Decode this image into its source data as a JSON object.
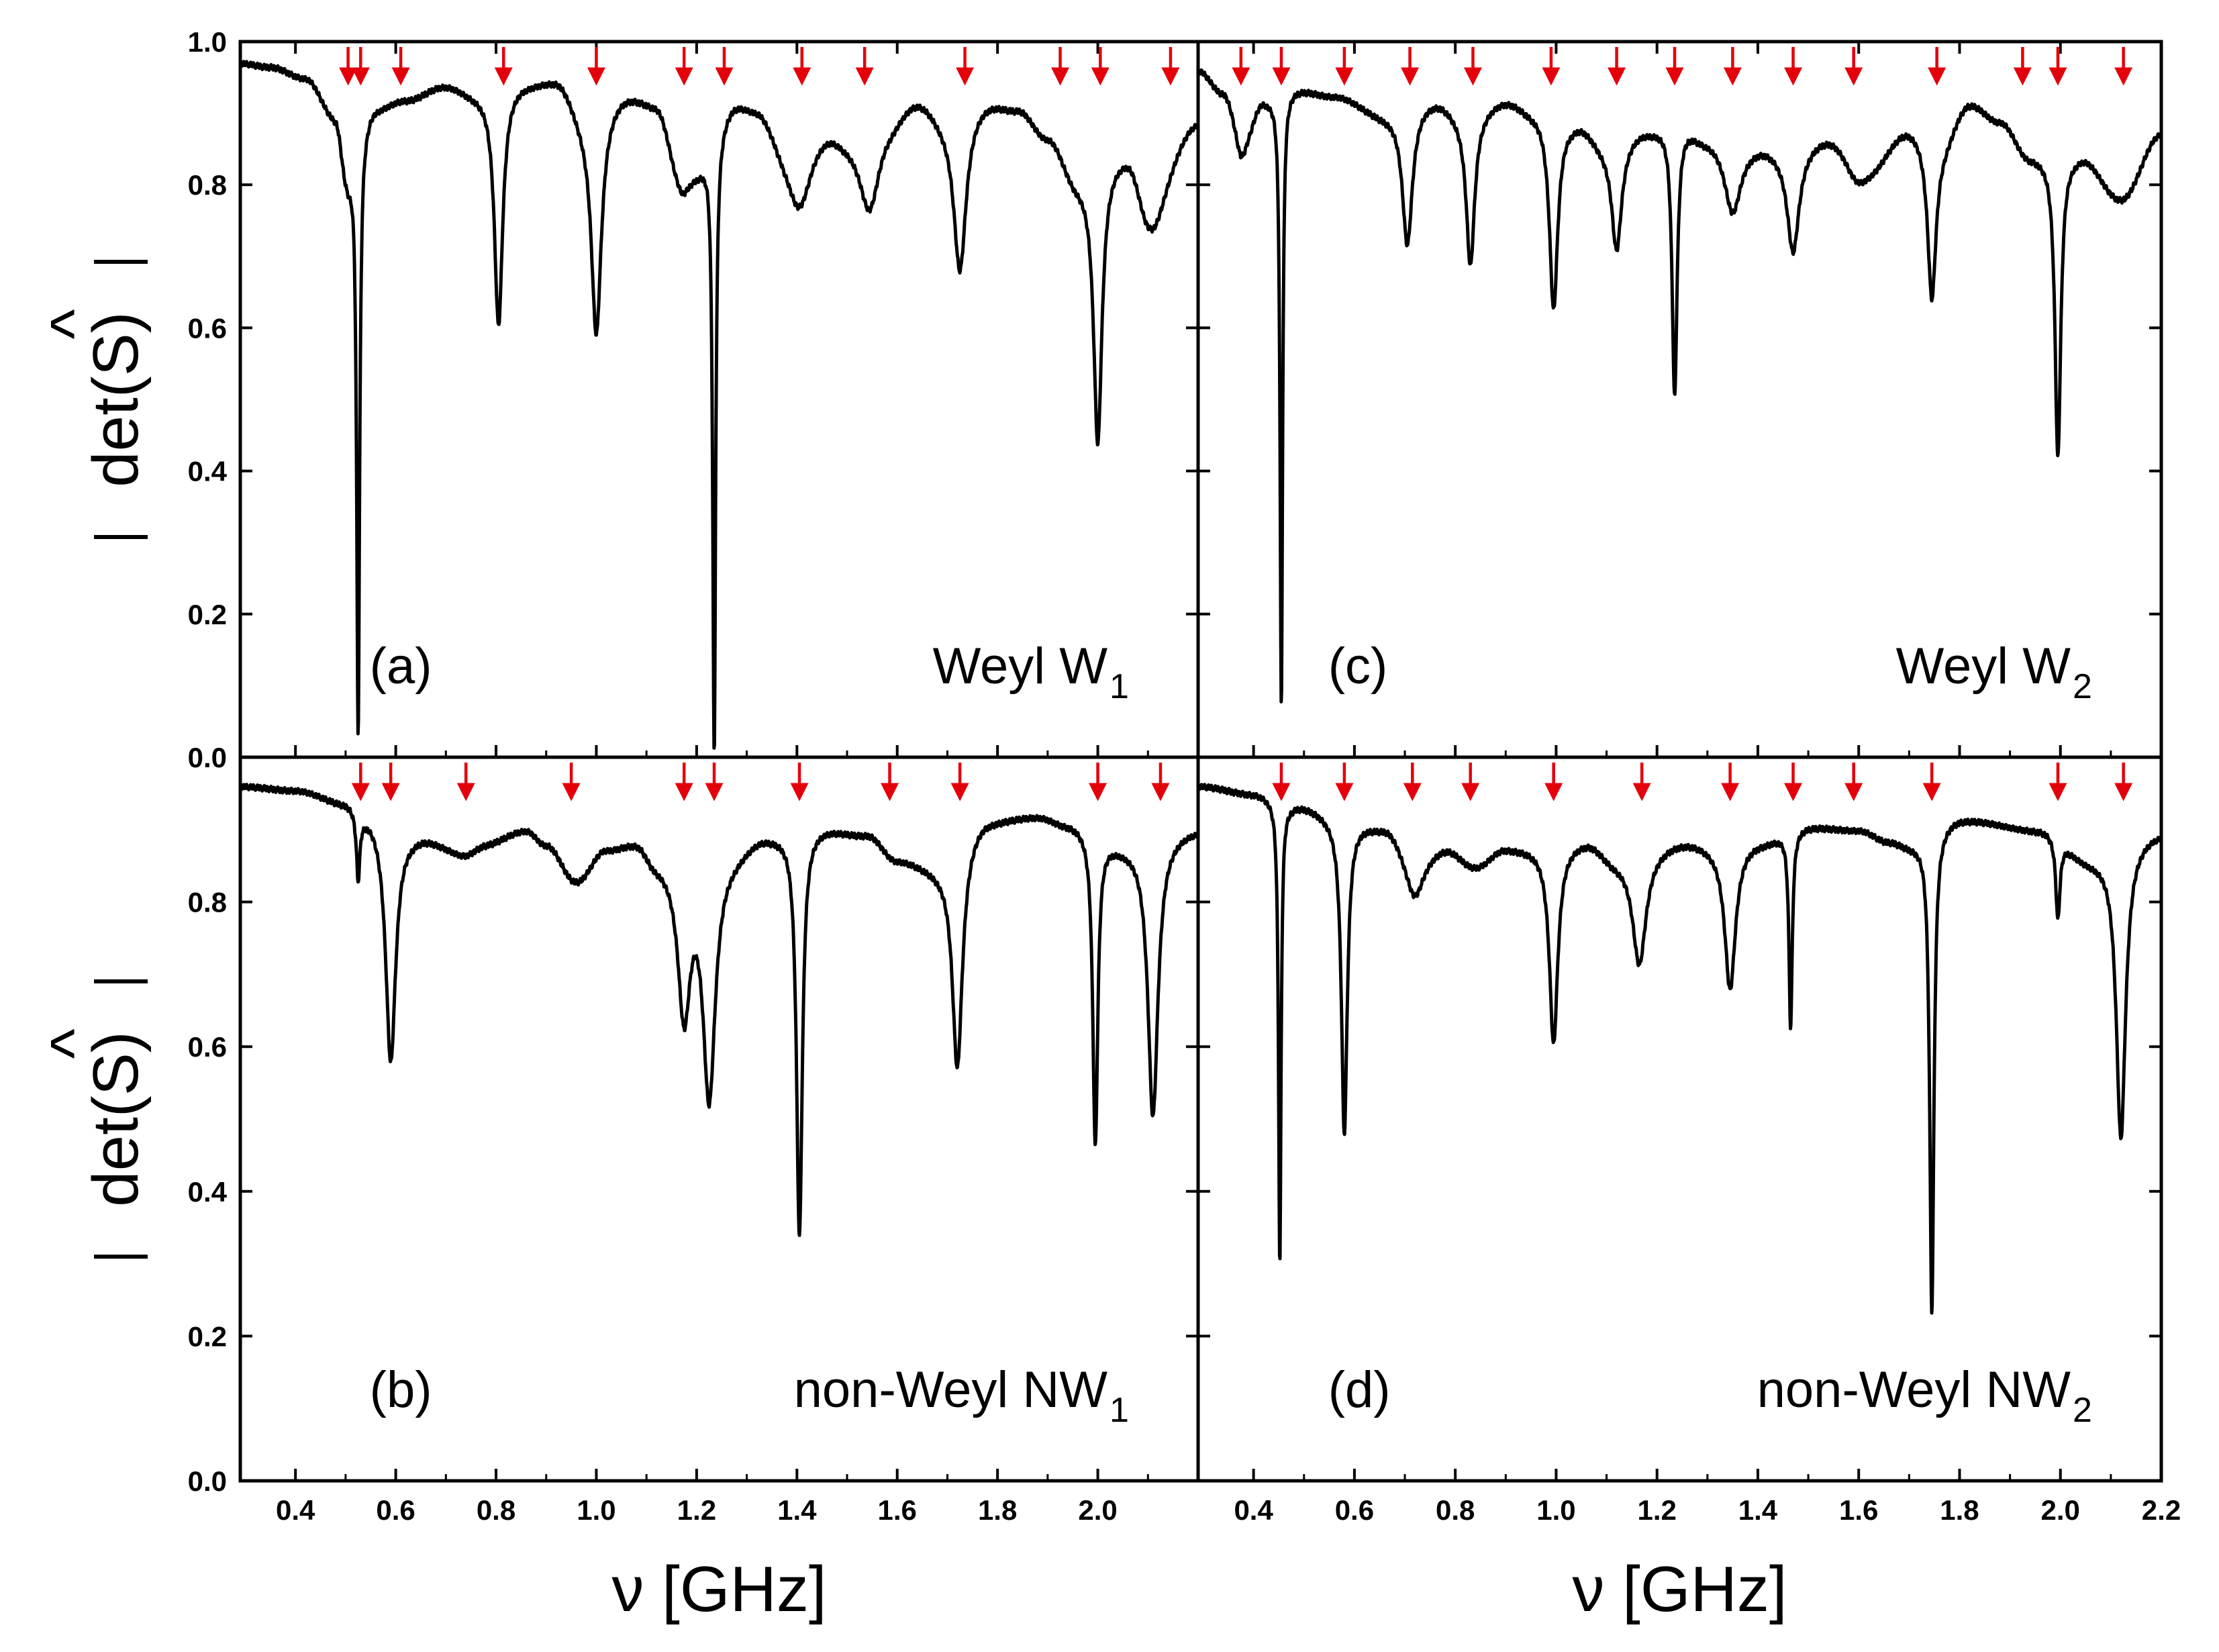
{
  "figure": {
    "xlabel": "ν [GHz]",
    "ylabel_main": "det(S)",
    "ylabel_hat": "^",
    "colors": {
      "curve": "#000000",
      "arrow": "#e3000b",
      "frame": "#000000"
    }
  },
  "chart_data": [
    {
      "type": "line",
      "panel_id": "(a)",
      "label": "Weyl W",
      "label_sub": "1",
      "xlim": [
        0.29,
        2.2
      ],
      "ylim": [
        0.0,
        1.0
      ],
      "xticks": [
        "0.4",
        "0.6",
        "0.8",
        "1.0",
        "1.2",
        "1.4",
        "1.6",
        "1.8",
        "2.0"
      ],
      "yticks": [
        "0.0",
        "0.2",
        "0.4",
        "0.6",
        "0.8",
        "1.0"
      ],
      "baseline": [
        [
          0.29,
          0.97
        ],
        [
          0.35,
          0.965
        ],
        [
          0.42,
          0.95
        ],
        [
          0.48,
          0.9
        ],
        [
          0.5,
          0.85
        ],
        [
          0.56,
          0.91
        ],
        [
          0.62,
          0.92
        ],
        [
          0.7,
          0.94
        ],
        [
          0.76,
          0.93
        ],
        [
          0.86,
          0.945
        ],
        [
          0.92,
          0.95
        ],
        [
          0.98,
          0.9
        ],
        [
          1.06,
          0.93
        ],
        [
          1.12,
          0.92
        ],
        [
          1.16,
          0.87
        ],
        [
          1.2,
          0.84
        ],
        [
          1.28,
          0.92
        ],
        [
          1.32,
          0.915
        ],
        [
          1.38,
          0.87
        ],
        [
          1.46,
          0.89
        ],
        [
          1.5,
          0.88
        ],
        [
          1.58,
          0.9
        ],
        [
          1.64,
          0.925
        ],
        [
          1.7,
          0.9
        ],
        [
          1.78,
          0.92
        ],
        [
          1.84,
          0.91
        ],
        [
          1.9,
          0.87
        ],
        [
          1.96,
          0.81
        ],
        [
          2.06,
          0.85
        ],
        [
          2.1,
          0.8
        ],
        [
          2.2,
          0.89
        ]
      ],
      "resonances": [
        {
          "x": 0.525,
          "depth": 0.83,
          "width": 0.0035
        },
        {
          "x": 0.505,
          "depth": 0.04,
          "width": 0.012
        },
        {
          "x": 0.805,
          "depth": 0.33,
          "width": 0.01
        },
        {
          "x": 1.0,
          "depth": 0.31,
          "width": 0.012
        },
        {
          "x": 1.17,
          "depth": 0.07,
          "width": 0.02
        },
        {
          "x": 1.235,
          "depth": 0.86,
          "width": 0.0035
        },
        {
          "x": 1.405,
          "depth": 0.1,
          "width": 0.03
        },
        {
          "x": 1.545,
          "depth": 0.12,
          "width": 0.025
        },
        {
          "x": 1.725,
          "depth": 0.22,
          "width": 0.015
        },
        {
          "x": 2.0,
          "depth": 0.38,
          "width": 0.01
        },
        {
          "x": 2.11,
          "depth": 0.06,
          "width": 0.03
        }
      ],
      "arrows_x": [
        0.505,
        0.53,
        0.61,
        0.815,
        1.0,
        1.175,
        1.255,
        1.41,
        1.535,
        1.735,
        1.925,
        2.005,
        2.145
      ]
    },
    {
      "type": "line",
      "panel_id": "(b)",
      "label": "non-Weyl NW",
      "label_sub": "1",
      "xlim": [
        0.29,
        2.2
      ],
      "ylim": [
        0.0,
        1.0
      ],
      "xticks": [
        "0.4",
        "0.6",
        "0.8",
        "1.0",
        "1.2",
        "1.4",
        "1.6",
        "1.8",
        "2.0"
      ],
      "yticks": [
        "0.0",
        "0.2",
        "0.4",
        "0.6",
        "0.8"
      ],
      "baseline": [
        [
          0.29,
          0.96
        ],
        [
          0.4,
          0.955
        ],
        [
          0.5,
          0.94
        ],
        [
          0.54,
          0.925
        ],
        [
          0.64,
          0.895
        ],
        [
          0.72,
          0.88
        ],
        [
          0.78,
          0.885
        ],
        [
          0.86,
          0.9
        ],
        [
          0.9,
          0.88
        ],
        [
          0.96,
          0.83
        ],
        [
          1.02,
          0.875
        ],
        [
          1.08,
          0.885
        ],
        [
          1.12,
          0.86
        ],
        [
          1.26,
          0.87
        ],
        [
          1.34,
          0.895
        ],
        [
          1.44,
          0.905
        ],
        [
          1.54,
          0.895
        ],
        [
          1.6,
          0.86
        ],
        [
          1.68,
          0.85
        ],
        [
          1.78,
          0.915
        ],
        [
          1.88,
          0.92
        ],
        [
          1.94,
          0.91
        ],
        [
          2.06,
          0.88
        ],
        [
          2.2,
          0.9
        ]
      ],
      "resonances": [
        {
          "x": 0.525,
          "depth": 0.09,
          "width": 0.004
        },
        {
          "x": 0.59,
          "depth": 0.33,
          "width": 0.012
        },
        {
          "x": 0.74,
          "depth": 0.015,
          "width": 0.03
        },
        {
          "x": 1.175,
          "depth": 0.21,
          "width": 0.015
        },
        {
          "x": 1.225,
          "depth": 0.33,
          "width": 0.015
        },
        {
          "x": 1.405,
          "depth": 0.56,
          "width": 0.007
        },
        {
          "x": 1.72,
          "depth": 0.3,
          "width": 0.012
        },
        {
          "x": 1.995,
          "depth": 0.43,
          "width": 0.006
        },
        {
          "x": 2.11,
          "depth": 0.38,
          "width": 0.012
        }
      ],
      "arrows_x": [
        0.53,
        0.59,
        0.74,
        0.95,
        1.175,
        1.235,
        1.405,
        1.585,
        1.725,
        2.0,
        2.125
      ]
    },
    {
      "type": "line",
      "panel_id": "(c)",
      "label": "Weyl W",
      "label_sub": "2",
      "xlim": [
        0.29,
        2.2
      ],
      "ylim": [
        0.0,
        1.0
      ],
      "xticks": [
        "0.4",
        "0.6",
        "0.8",
        "1.0",
        "1.2",
        "1.4",
        "1.6",
        "1.8",
        "2.0",
        "2.2"
      ],
      "yticks": [
        "0.0",
        "0.2",
        "0.4",
        "0.6",
        "0.8",
        "1.0"
      ],
      "baseline": [
        [
          0.29,
          0.96
        ],
        [
          0.34,
          0.93
        ],
        [
          0.38,
          0.87
        ],
        [
          0.42,
          0.92
        ],
        [
          0.48,
          0.935
        ],
        [
          0.56,
          0.925
        ],
        [
          0.66,
          0.9
        ],
        [
          0.76,
          0.92
        ],
        [
          0.82,
          0.9
        ],
        [
          0.9,
          0.92
        ],
        [
          0.96,
          0.905
        ],
        [
          1.04,
          0.89
        ],
        [
          1.1,
          0.86
        ],
        [
          1.18,
          0.88
        ],
        [
          1.24,
          0.89
        ],
        [
          1.3,
          0.87
        ],
        [
          1.4,
          0.86
        ],
        [
          1.46,
          0.85
        ],
        [
          1.54,
          0.87
        ],
        [
          1.62,
          0.83
        ],
        [
          1.7,
          0.88
        ],
        [
          1.76,
          0.86
        ],
        [
          1.82,
          0.915
        ],
        [
          1.88,
          0.89
        ],
        [
          1.94,
          0.84
        ],
        [
          2.04,
          0.84
        ],
        [
          2.12,
          0.78
        ],
        [
          2.2,
          0.87
        ]
      ],
      "resonances": [
        {
          "x": 0.455,
          "depth": 0.86,
          "width": 0.003
        },
        {
          "x": 0.375,
          "depth": 0.03,
          "width": 0.012
        },
        {
          "x": 0.705,
          "depth": 0.19,
          "width": 0.012
        },
        {
          "x": 0.83,
          "depth": 0.21,
          "width": 0.01
        },
        {
          "x": 0.995,
          "depth": 0.27,
          "width": 0.01
        },
        {
          "x": 1.12,
          "depth": 0.15,
          "width": 0.012
        },
        {
          "x": 1.235,
          "depth": 0.38,
          "width": 0.006
        },
        {
          "x": 1.35,
          "depth": 0.1,
          "width": 0.02
        },
        {
          "x": 1.47,
          "depth": 0.14,
          "width": 0.014
        },
        {
          "x": 1.595,
          "depth": 0.03,
          "width": 0.03
        },
        {
          "x": 1.745,
          "depth": 0.22,
          "width": 0.01
        },
        {
          "x": 1.995,
          "depth": 0.42,
          "width": 0.007
        }
      ],
      "arrows_x": [
        0.375,
        0.455,
        0.58,
        0.71,
        0.835,
        0.99,
        1.12,
        1.235,
        1.35,
        1.47,
        1.59,
        1.755,
        1.925,
        1.995,
        2.125
      ]
    },
    {
      "type": "line",
      "panel_id": "(d)",
      "label": "non-Weyl NW",
      "label_sub": "2",
      "xlim": [
        0.29,
        2.2
      ],
      "ylim": [
        0.0,
        1.0
      ],
      "xticks": [
        "0.4",
        "0.6",
        "0.8",
        "1.0",
        "1.2",
        "1.4",
        "1.6",
        "1.8",
        "2.0",
        "2.2"
      ],
      "yticks": [
        "0.0",
        "0.2",
        "0.4",
        "0.6",
        "0.8"
      ],
      "baseline": [
        [
          0.29,
          0.96
        ],
        [
          0.4,
          0.95
        ],
        [
          0.48,
          0.935
        ],
        [
          0.6,
          0.91
        ],
        [
          0.66,
          0.905
        ],
        [
          0.72,
          0.86
        ],
        [
          0.78,
          0.875
        ],
        [
          0.84,
          0.85
        ],
        [
          0.9,
          0.875
        ],
        [
          0.98,
          0.875
        ],
        [
          1.06,
          0.885
        ],
        [
          1.12,
          0.86
        ],
        [
          1.26,
          0.885
        ],
        [
          1.32,
          0.88
        ],
        [
          1.4,
          0.885
        ],
        [
          1.5,
          0.905
        ],
        [
          1.6,
          0.9
        ],
        [
          1.66,
          0.885
        ],
        [
          1.7,
          0.88
        ],
        [
          1.8,
          0.915
        ],
        [
          1.96,
          0.9
        ],
        [
          2.06,
          0.86
        ],
        [
          2.2,
          0.895
        ]
      ],
      "resonances": [
        {
          "x": 0.452,
          "depth": 0.64,
          "width": 0.003
        },
        {
          "x": 0.58,
          "depth": 0.43,
          "width": 0.007
        },
        {
          "x": 0.72,
          "depth": 0.05,
          "width": 0.02
        },
        {
          "x": 0.995,
          "depth": 0.27,
          "width": 0.01
        },
        {
          "x": 1.165,
          "depth": 0.15,
          "width": 0.016
        },
        {
          "x": 1.345,
          "depth": 0.2,
          "width": 0.013
        },
        {
          "x": 1.465,
          "depth": 0.27,
          "width": 0.004
        },
        {
          "x": 1.745,
          "depth": 0.66,
          "width": 0.005
        },
        {
          "x": 1.995,
          "depth": 0.11,
          "width": 0.005
        },
        {
          "x": 2.12,
          "depth": 0.4,
          "width": 0.011
        }
      ],
      "arrows_x": [
        0.455,
        0.58,
        0.715,
        0.83,
        0.995,
        1.17,
        1.345,
        1.47,
        1.59,
        1.745,
        1.995,
        2.125
      ]
    }
  ]
}
